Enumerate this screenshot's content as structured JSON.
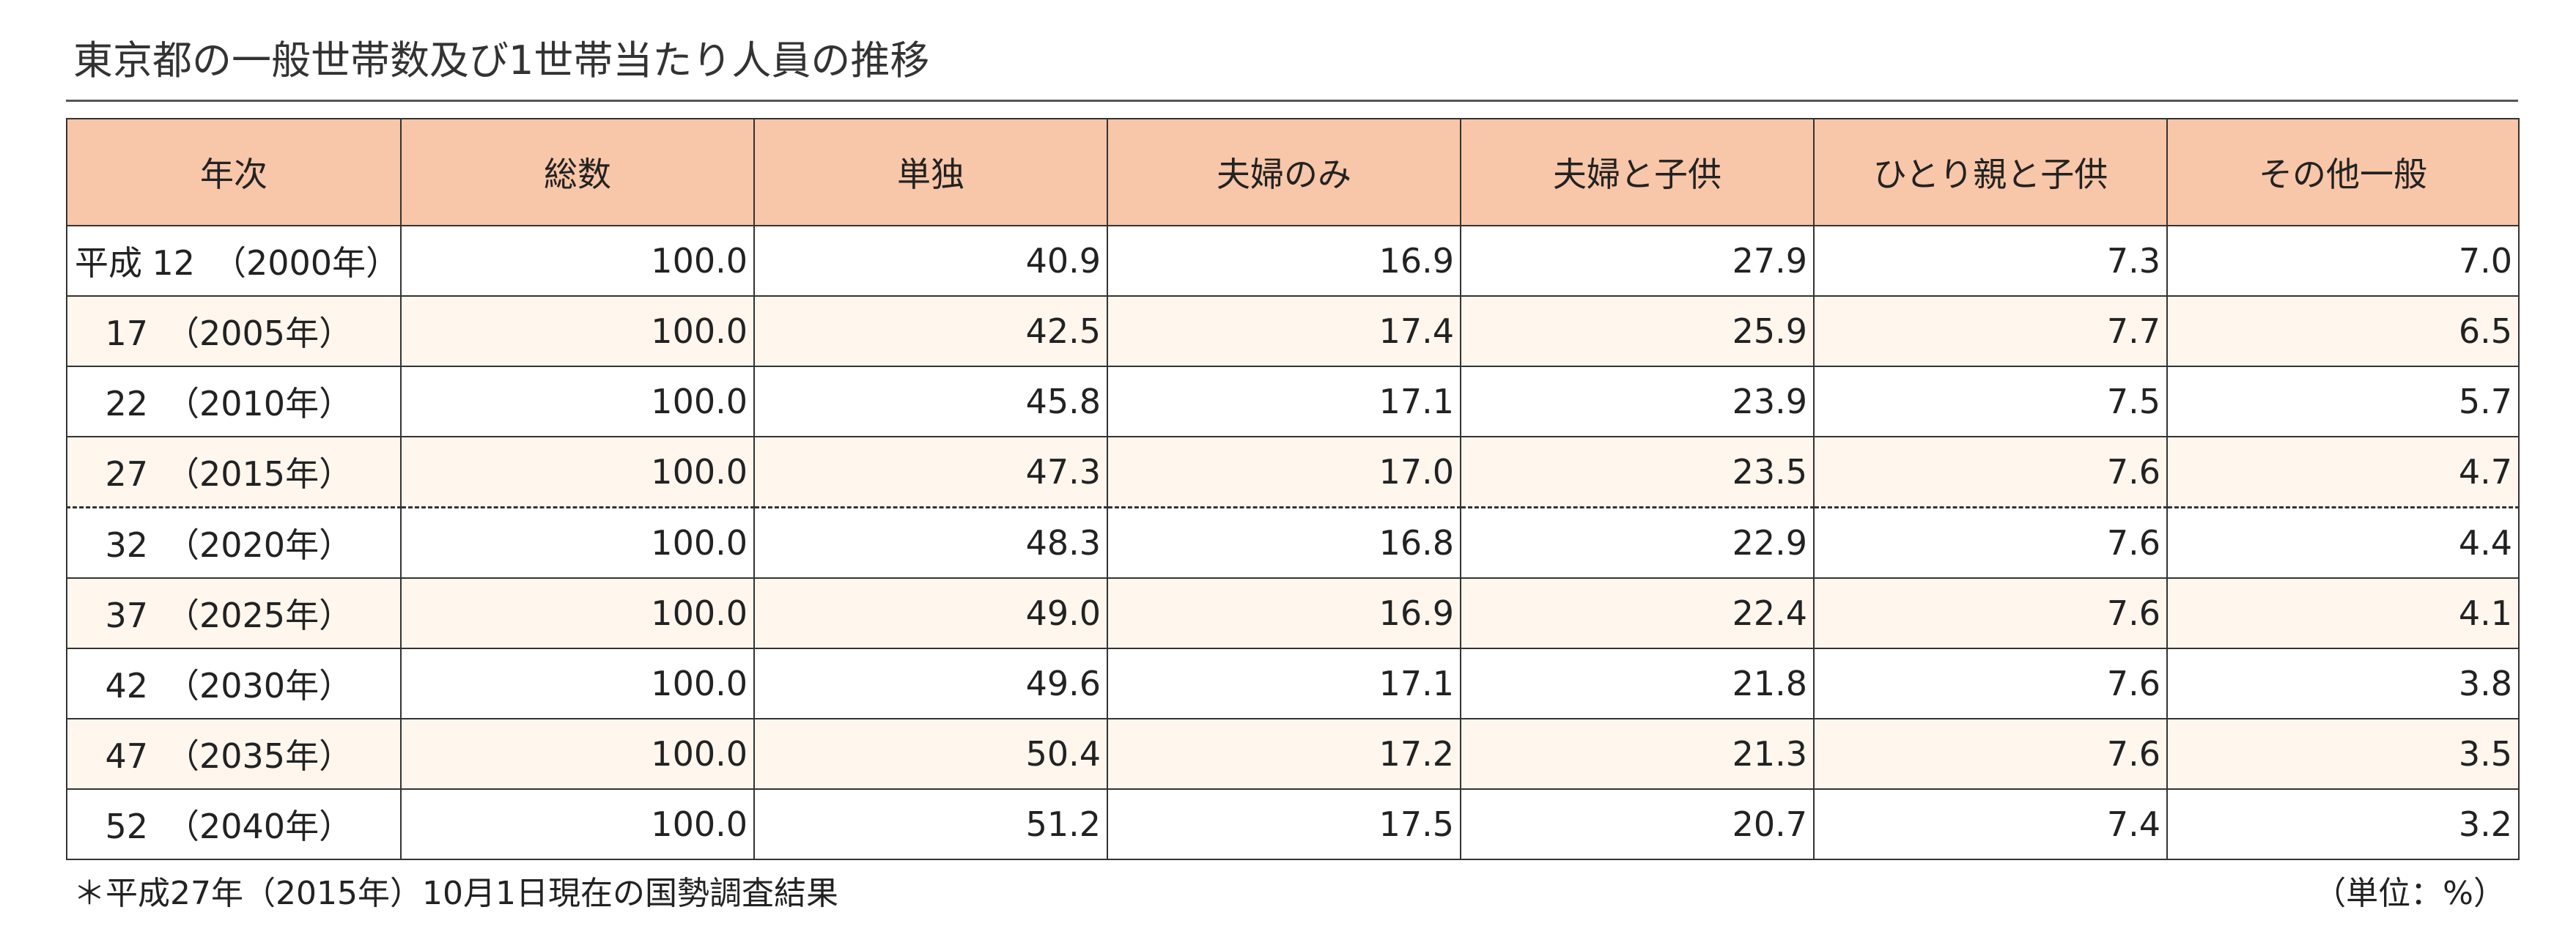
{
  "title": "東京都の一般世帯数及び1世帯当たり人員の推移",
  "table": {
    "headers": [
      "年次",
      "総数",
      "単独",
      "夫婦のみ",
      "夫婦と子供",
      "ひとり親と子供",
      "その他一般"
    ],
    "rows": [
      {
        "era": "平成",
        "year": "12",
        "paren": "（2000年）",
        "values": [
          "100.0",
          "40.9",
          "16.9",
          "27.9",
          "7.3",
          "7.0"
        ]
      },
      {
        "era": "",
        "year": "17",
        "paren": "（2005年）",
        "values": [
          "100.0",
          "42.5",
          "17.4",
          "25.9",
          "7.7",
          "6.5"
        ]
      },
      {
        "era": "",
        "year": "22",
        "paren": "（2010年）",
        "values": [
          "100.0",
          "45.8",
          "17.1",
          "23.9",
          "7.5",
          "5.7"
        ]
      },
      {
        "era": "",
        "year": "27",
        "paren": "（2015年）",
        "values": [
          "100.0",
          "47.3",
          "17.0",
          "23.5",
          "7.6",
          "4.7"
        ]
      },
      {
        "era": "",
        "year": "32",
        "paren": "（2020年）",
        "values": [
          "100.0",
          "48.3",
          "16.8",
          "22.9",
          "7.6",
          "4.4"
        ]
      },
      {
        "era": "",
        "year": "37",
        "paren": "（2025年）",
        "values": [
          "100.0",
          "49.0",
          "16.9",
          "22.4",
          "7.6",
          "4.1"
        ]
      },
      {
        "era": "",
        "year": "42",
        "paren": "（2030年）",
        "values": [
          "100.0",
          "49.6",
          "17.1",
          "21.8",
          "7.6",
          "3.8"
        ]
      },
      {
        "era": "",
        "year": "47",
        "paren": "（2035年）",
        "values": [
          "100.0",
          "50.4",
          "17.2",
          "21.3",
          "7.6",
          "3.5"
        ]
      },
      {
        "era": "",
        "year": "52",
        "paren": "（2040年）",
        "values": [
          "100.0",
          "51.2",
          "17.5",
          "20.7",
          "7.4",
          "3.2"
        ]
      }
    ]
  },
  "footnote": "＊平成27年（2015年）10月1日現在の国勢調査結果",
  "unit": "（単位：%）",
  "colors": {
    "header_bg": "#f8c6a8",
    "shaded_row_bg": "#fff6ee",
    "border": "#333333"
  }
}
